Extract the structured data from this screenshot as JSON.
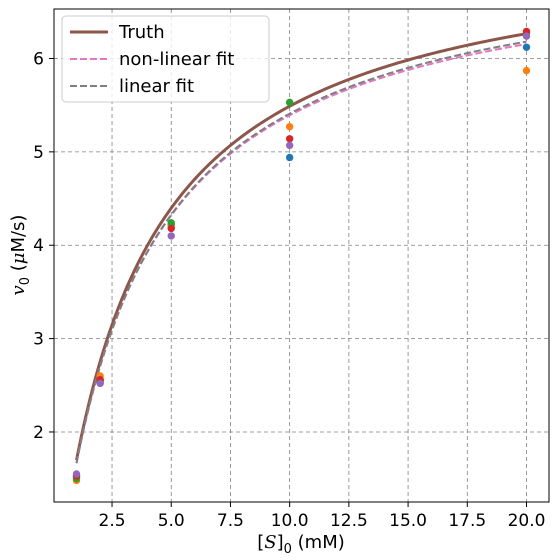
{
  "chart_data": {
    "type": "line",
    "title": "",
    "xlabel_parts": [
      "[",
      "S",
      "]",
      "0",
      " (mM)"
    ],
    "ylabel_parts": [
      "v",
      "0",
      " (",
      "μ",
      "M/s)"
    ],
    "xlim": [
      0.05,
      20.95
    ],
    "ylim": [
      1.25,
      6.53
    ],
    "xticks": [
      2.5,
      5.0,
      7.5,
      10.0,
      12.5,
      15.0,
      17.5,
      20.0
    ],
    "xtick_labels": [
      "2.5",
      "5.0",
      "7.5",
      "10.0",
      "12.5",
      "15.0",
      "17.5",
      "20.0"
    ],
    "yticks": [
      2,
      3,
      4,
      5,
      6
    ],
    "ytick_labels": [
      "2",
      "3",
      "4",
      "5",
      "6"
    ],
    "grid": true,
    "legend_position": "top-left",
    "series": [
      {
        "name": "Truth",
        "color": "#8c564b",
        "dash": "solid",
        "vmax": 7.3,
        "km": 3.3
      },
      {
        "name": "non-linear fit",
        "color": "#e377c2",
        "dash": "dashed",
        "vmax": 7.17,
        "km": 3.3
      },
      {
        "name": "linear fit",
        "color": "#7f7f7f",
        "dash": "dashed",
        "vmax": 7.21,
        "km": 3.33
      }
    ],
    "curve_x_range": [
      1,
      20
    ],
    "scatter": [
      {
        "color": "#1f77b4",
        "points": [
          [
            1,
            1.52
          ],
          [
            2,
            2.53
          ],
          [
            5,
            4.22
          ],
          [
            10,
            4.94
          ],
          [
            20,
            6.12
          ]
        ]
      },
      {
        "color": "#ff7f0e",
        "points": [
          [
            1,
            1.48
          ],
          [
            2,
            2.6
          ],
          [
            5,
            4.2
          ],
          [
            10,
            5.27
          ],
          [
            20,
            5.87
          ]
        ]
      },
      {
        "color": "#2ca02c",
        "points": [
          [
            1,
            1.5
          ],
          [
            2,
            2.55
          ],
          [
            5,
            4.24
          ],
          [
            10,
            5.53
          ],
          [
            20,
            6.27
          ]
        ]
      },
      {
        "color": "#d62728",
        "points": [
          [
            1,
            1.53
          ],
          [
            2,
            2.56
          ],
          [
            5,
            4.18
          ],
          [
            10,
            5.14
          ],
          [
            20,
            6.29
          ]
        ]
      },
      {
        "color": "#9467bd",
        "points": [
          [
            1,
            1.55
          ],
          [
            2,
            2.52
          ],
          [
            5,
            4.1
          ],
          [
            10,
            5.07
          ],
          [
            20,
            6.24
          ]
        ]
      }
    ]
  }
}
